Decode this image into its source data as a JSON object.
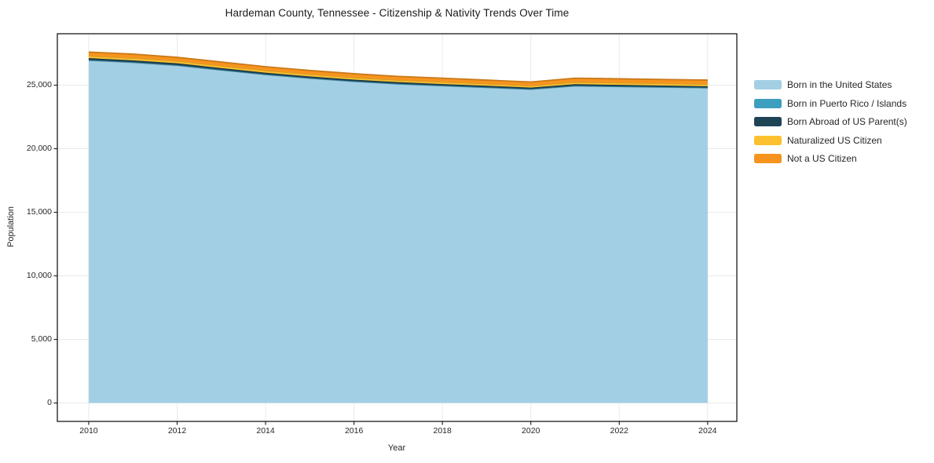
{
  "chart_data": {
    "type": "area",
    "stacked": true,
    "title": "Hardeman County, Tennessee - Citizenship & Nativity Trends Over Time",
    "xlabel": "Year",
    "ylabel": "Population",
    "grid": true,
    "legend_position": "right-outside",
    "x": [
      2010,
      2011,
      2012,
      2013,
      2014,
      2015,
      2016,
      2017,
      2018,
      2019,
      2020,
      2021,
      2022,
      2023,
      2024
    ],
    "x_ticks": [
      2010,
      2012,
      2014,
      2016,
      2018,
      2020,
      2022,
      2024
    ],
    "y_ticks": [
      0,
      5000,
      10000,
      15000,
      20000,
      25000
    ],
    "x_range": [
      2009.29,
      2024.66
    ],
    "y_range": [
      -1450,
      29045
    ],
    "series": [
      {
        "name": "Born in the United States",
        "color": "#A3CFE4",
        "values": [
          26950,
          26780,
          26550,
          26180,
          25830,
          25540,
          25290,
          25090,
          24950,
          24820,
          24680,
          24940,
          24890,
          24840,
          24790
        ]
      },
      {
        "name": "Born in Puerto Rico / Islands",
        "color": "#3D9FBF",
        "values": [
          30,
          30,
          25,
          25,
          20,
          20,
          20,
          20,
          20,
          15,
          15,
          15,
          15,
          15,
          15
        ]
      },
      {
        "name": "Born Abroad of US Parent(s)",
        "color": "#1F4456",
        "values": [
          150,
          145,
          150,
          140,
          130,
          130,
          120,
          130,
          120,
          120,
          110,
          120,
          120,
          115,
          110
        ]
      },
      {
        "name": "Naturalized US Citizen",
        "color": "#FDC12F",
        "values": [
          170,
          180,
          175,
          180,
          170,
          175,
          170,
          160,
          170,
          160,
          150,
          170,
          165,
          170,
          165
        ]
      },
      {
        "name": "Not a US Citizen",
        "color": "#F7941E",
        "values": [
          300,
          310,
          290,
          295,
          300,
          290,
          300,
          290,
          290,
          285,
          295,
          305,
          310,
          310,
          320
        ]
      }
    ],
    "colors": {
      "grid": "#e9e9e9",
      "spine": "#1a1a1a",
      "text": "#262626"
    }
  }
}
